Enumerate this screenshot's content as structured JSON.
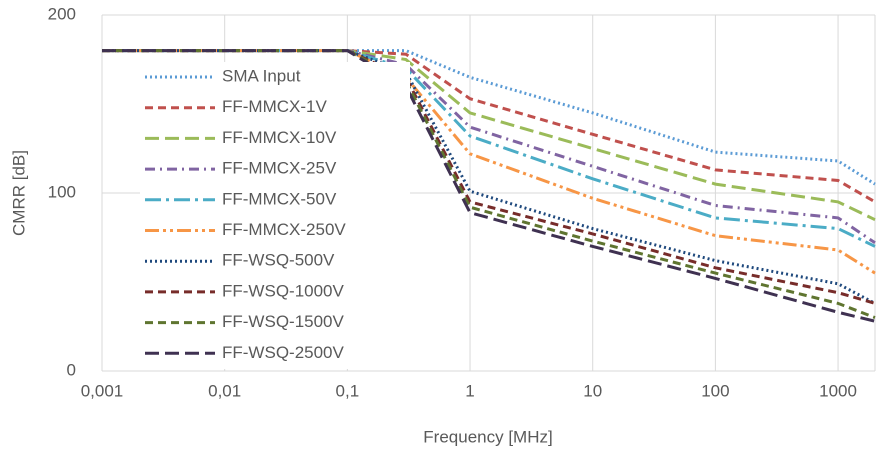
{
  "chart_data": {
    "type": "line",
    "x_label": "Frequency [MHz]",
    "y_label": "CMRR [dB]",
    "x": [
      0.001,
      0.1,
      0.3,
      1,
      10,
      100,
      1000,
      2000
    ],
    "xlim": [
      0.001,
      2000
    ],
    "x_log": true,
    "xticks": [
      {
        "value": 0.001,
        "label": "0,001"
      },
      {
        "value": 0.01,
        "label": "0,01"
      },
      {
        "value": 0.1,
        "label": "0,1"
      },
      1,
      10,
      100,
      1000
    ],
    "ylim": [
      0,
      200
    ],
    "yticks": [
      0,
      100,
      200
    ],
    "grid": true,
    "legend": "upper left",
    "series": [
      {
        "name": "SMA Input",
        "color": "#5b9bd5",
        "dash": "dot",
        "values": [
          180,
          180,
          180,
          165,
          145,
          123,
          118,
          105
        ]
      },
      {
        "name": "FF-MMCX-1V",
        "color": "#c0504d",
        "dash": "dash",
        "values": [
          180,
          180,
          178,
          153,
          133,
          113,
          107,
          95
        ]
      },
      {
        "name": "FF-MMCX-10V",
        "color": "#9bbb59",
        "dash": "longdash",
        "values": [
          180,
          180,
          175,
          145,
          125,
          105,
          95,
          85
        ]
      },
      {
        "name": "FF-MMCX-25V",
        "color": "#8064a2",
        "dash": "dashdot",
        "values": [
          180,
          180,
          172,
          137,
          115,
          93,
          86,
          72
        ]
      },
      {
        "name": "FF-MMCX-50V",
        "color": "#4bacc6",
        "dash": "longdashdot",
        "values": [
          180,
          180,
          170,
          132,
          108,
          86,
          80,
          70
        ]
      },
      {
        "name": "FF-MMCX-250V",
        "color": "#f79646",
        "dash": "longdashdotdot",
        "values": [
          180,
          180,
          165,
          122,
          97,
          76,
          68,
          55
        ]
      },
      {
        "name": "FF-WSQ-500V",
        "color": "#1f497d",
        "dash": "dot",
        "values": [
          180,
          180,
          168,
          101,
          80,
          62,
          49,
          38
        ]
      },
      {
        "name": "FF-WSQ-1000V",
        "color": "#772c2a",
        "dash": "dash",
        "values": [
          180,
          180,
          165,
          95,
          77,
          58,
          44,
          38
        ]
      },
      {
        "name": "FF-WSQ-1500V",
        "color": "#5f7530",
        "dash": "dash",
        "values": [
          180,
          180,
          163,
          92,
          73,
          55,
          38,
          30
        ]
      },
      {
        "name": "FF-WSQ-2500V",
        "color": "#3f3151",
        "dash": "longdash",
        "values": [
          180,
          180,
          160,
          89,
          70,
          52,
          33,
          28
        ]
      }
    ]
  }
}
